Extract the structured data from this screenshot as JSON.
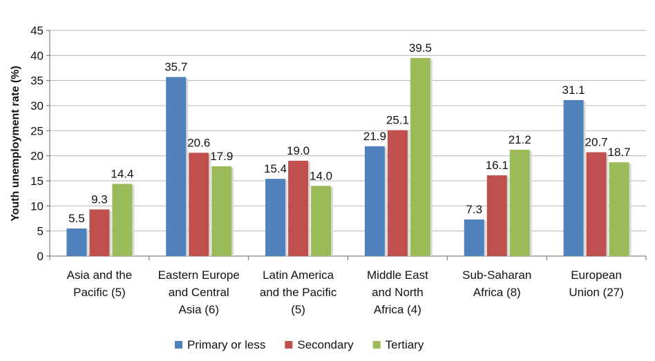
{
  "chart_data": {
    "type": "bar",
    "title": "",
    "xlabel": "",
    "ylabel": "Youth unemployment rate (%)",
    "ylim": [
      0,
      45
    ],
    "yticks": [
      0,
      5,
      10,
      15,
      20,
      25,
      30,
      35,
      40,
      45
    ],
    "grid": true,
    "legend_position": "bottom",
    "categories": [
      [
        "Asia and the",
        "Pacific (5)"
      ],
      [
        "Eastern Europe",
        "and Central",
        "Asia (6)"
      ],
      [
        "Latin America",
        "and the Pacific",
        "(5)"
      ],
      [
        "Middle East",
        "and North",
        "Africa (4)"
      ],
      [
        "Sub-Saharan",
        "Africa (8)"
      ],
      [
        "European",
        "Union (27)"
      ]
    ],
    "series": [
      {
        "name": "Primary or less",
        "color": "#4F81BD",
        "values": [
          5.5,
          35.7,
          15.4,
          21.9,
          7.3,
          31.1
        ],
        "labels": [
          "5.5",
          "35.7",
          "15.4",
          "21.9",
          "7.3",
          "31.1"
        ]
      },
      {
        "name": "Secondary",
        "color": "#C0504D",
        "values": [
          9.3,
          20.6,
          19.0,
          25.1,
          16.1,
          20.7
        ],
        "labels": [
          "9.3",
          "20.6",
          "19.0",
          "25.1",
          "16.1",
          "20.7"
        ]
      },
      {
        "name": "Tertiary",
        "color": "#9BBB59",
        "values": [
          14.4,
          17.9,
          14.0,
          39.5,
          21.2,
          18.7
        ],
        "labels": [
          "14.4",
          "17.9",
          "14.0",
          "39.5",
          "21.2",
          "18.7"
        ]
      }
    ]
  }
}
